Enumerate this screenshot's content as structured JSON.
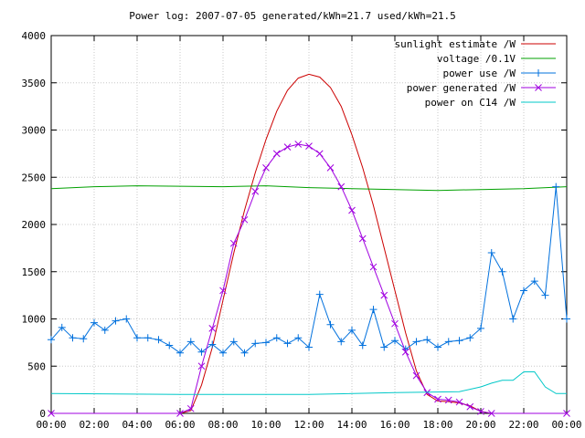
{
  "chart_data": {
    "type": "line",
    "title": "Power log: 2007-07-05 generated/kWh=21.7 used/kWh=21.5",
    "xlabel": "",
    "ylabel": "",
    "x_range": [
      "00:00",
      "24:00"
    ],
    "ylim": [
      0,
      4000
    ],
    "x_ticks": [
      "00:00",
      "02:00",
      "04:00",
      "06:00",
      "08:00",
      "10:00",
      "12:00",
      "14:00",
      "16:00",
      "18:00",
      "20:00",
      "22:00",
      "00:00"
    ],
    "y_ticks": [
      0,
      500,
      1000,
      1500,
      2000,
      2500,
      3000,
      3500,
      4000
    ],
    "grid": true,
    "legend_position": "top-right",
    "series": [
      {
        "name": "sunlight estimate /W",
        "color": "#cc0000",
        "marker": "none",
        "points": [
          [
            "00:00",
            0
          ],
          [
            "06:00",
            0
          ],
          [
            "06:30",
            30
          ],
          [
            "07:00",
            300
          ],
          [
            "07:30",
            700
          ],
          [
            "08:00",
            1200
          ],
          [
            "08:30",
            1700
          ],
          [
            "09:00",
            2150
          ],
          [
            "09:30",
            2550
          ],
          [
            "10:00",
            2900
          ],
          [
            "10:30",
            3200
          ],
          [
            "11:00",
            3420
          ],
          [
            "11:30",
            3550
          ],
          [
            "12:00",
            3590
          ],
          [
            "12:30",
            3560
          ],
          [
            "13:00",
            3450
          ],
          [
            "13:30",
            3250
          ],
          [
            "14:00",
            2950
          ],
          [
            "14:30",
            2600
          ],
          [
            "15:00",
            2200
          ],
          [
            "15:30",
            1750
          ],
          [
            "16:00",
            1300
          ],
          [
            "16:30",
            850
          ],
          [
            "17:00",
            450
          ],
          [
            "17:30",
            200
          ],
          [
            "18:00",
            130
          ],
          [
            "18:30",
            125
          ],
          [
            "19:00",
            110
          ],
          [
            "19:30",
            80
          ],
          [
            "20:00",
            20
          ],
          [
            "20:30",
            0
          ],
          [
            "24:00",
            0
          ]
        ]
      },
      {
        "name": "voltage /0.1V",
        "color": "#00a000",
        "marker": "none",
        "points": [
          [
            "00:00",
            2380
          ],
          [
            "02:00",
            2400
          ],
          [
            "04:00",
            2410
          ],
          [
            "06:00",
            2405
          ],
          [
            "08:00",
            2400
          ],
          [
            "10:00",
            2410
          ],
          [
            "12:00",
            2390
          ],
          [
            "14:00",
            2380
          ],
          [
            "16:00",
            2370
          ],
          [
            "18:00",
            2360
          ],
          [
            "20:00",
            2370
          ],
          [
            "22:00",
            2380
          ],
          [
            "24:00",
            2400
          ]
        ]
      },
      {
        "name": "power use /W",
        "color": "#0070dd",
        "marker": "plus",
        "points": [
          [
            "00:00",
            780
          ],
          [
            "00:30",
            910
          ],
          [
            "01:00",
            800
          ],
          [
            "01:30",
            790
          ],
          [
            "02:00",
            960
          ],
          [
            "02:30",
            880
          ],
          [
            "03:00",
            980
          ],
          [
            "03:30",
            1000
          ],
          [
            "04:00",
            800
          ],
          [
            "04:30",
            800
          ],
          [
            "05:00",
            780
          ],
          [
            "05:30",
            720
          ],
          [
            "06:00",
            640
          ],
          [
            "06:30",
            760
          ],
          [
            "07:00",
            650
          ],
          [
            "07:30",
            730
          ],
          [
            "08:00",
            640
          ],
          [
            "08:30",
            760
          ],
          [
            "09:00",
            640
          ],
          [
            "09:30",
            740
          ],
          [
            "10:00",
            750
          ],
          [
            "10:30",
            800
          ],
          [
            "11:00",
            740
          ],
          [
            "11:30",
            800
          ],
          [
            "12:00",
            700
          ],
          [
            "12:30",
            1260
          ],
          [
            "13:00",
            940
          ],
          [
            "13:30",
            760
          ],
          [
            "14:00",
            880
          ],
          [
            "14:30",
            720
          ],
          [
            "15:00",
            1100
          ],
          [
            "15:30",
            700
          ],
          [
            "16:00",
            770
          ],
          [
            "16:30",
            680
          ],
          [
            "17:00",
            760
          ],
          [
            "17:30",
            780
          ],
          [
            "18:00",
            700
          ],
          [
            "18:30",
            760
          ],
          [
            "19:00",
            770
          ],
          [
            "19:30",
            800
          ],
          [
            "20:00",
            900
          ],
          [
            "20:30",
            1700
          ],
          [
            "21:00",
            1500
          ],
          [
            "21:30",
            1000
          ],
          [
            "22:00",
            1300
          ],
          [
            "22:30",
            1400
          ],
          [
            "23:00",
            1250
          ],
          [
            "23:30",
            2400
          ],
          [
            "24:00",
            1000
          ]
        ]
      },
      {
        "name": "power generated /W",
        "color": "#a000e0",
        "marker": "x",
        "points": [
          [
            "00:00",
            0
          ],
          [
            "06:00",
            0
          ],
          [
            "06:30",
            50
          ],
          [
            "07:00",
            500
          ],
          [
            "07:30",
            900
          ],
          [
            "08:00",
            1300
          ],
          [
            "08:30",
            1800
          ],
          [
            "09:00",
            2050
          ],
          [
            "09:30",
            2350
          ],
          [
            "10:00",
            2600
          ],
          [
            "10:30",
            2750
          ],
          [
            "11:00",
            2820
          ],
          [
            "11:30",
            2850
          ],
          [
            "12:00",
            2830
          ],
          [
            "12:30",
            2750
          ],
          [
            "13:00",
            2600
          ],
          [
            "13:30",
            2400
          ],
          [
            "14:00",
            2150
          ],
          [
            "14:30",
            1850
          ],
          [
            "15:00",
            1550
          ],
          [
            "15:30",
            1250
          ],
          [
            "16:00",
            950
          ],
          [
            "16:30",
            650
          ],
          [
            "17:00",
            400
          ],
          [
            "17:30",
            220
          ],
          [
            "18:00",
            150
          ],
          [
            "18:30",
            140
          ],
          [
            "19:00",
            120
          ],
          [
            "19:30",
            70
          ],
          [
            "20:00",
            20
          ],
          [
            "20:30",
            0
          ],
          [
            "24:00",
            0
          ]
        ]
      },
      {
        "name": "power on C14 /W",
        "color": "#00c8c8",
        "marker": "none",
        "points": [
          [
            "00:00",
            210
          ],
          [
            "06:00",
            200
          ],
          [
            "12:00",
            200
          ],
          [
            "16:00",
            220
          ],
          [
            "19:00",
            230
          ],
          [
            "20:00",
            280
          ],
          [
            "20:30",
            320
          ],
          [
            "21:00",
            350
          ],
          [
            "21:30",
            350
          ],
          [
            "22:00",
            440
          ],
          [
            "22:30",
            440
          ],
          [
            "23:00",
            280
          ],
          [
            "23:30",
            210
          ],
          [
            "24:00",
            210
          ]
        ]
      }
    ]
  }
}
